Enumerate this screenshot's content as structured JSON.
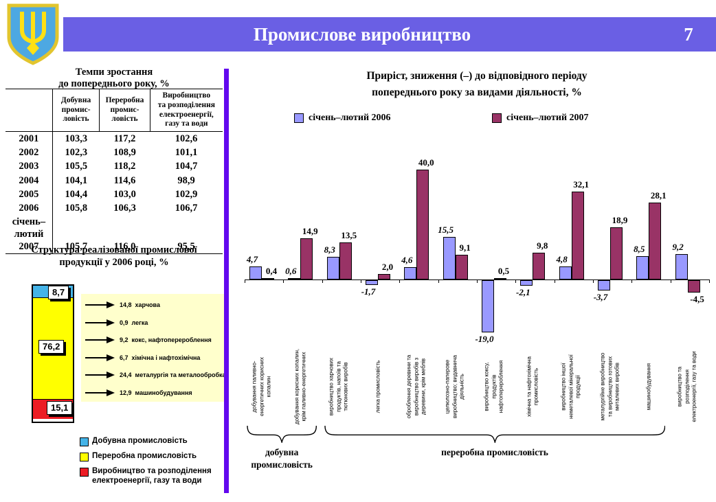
{
  "header": {
    "title": "Промислове виробництво",
    "page_number": "7"
  },
  "coat_of_arms": "ukraine-coat-of-arms-icon",
  "colors": {
    "header_bar": "#6A5FE4",
    "divider": "#6208EE",
    "series_2006": "#9999FF",
    "series_2007": "#993366",
    "mining_blue": "#45B4E8",
    "manufacturing_yellow": "#FFFF00",
    "energy_red": "#EC1C24",
    "breakdown_panel": "#FFFFCC"
  },
  "left_panel": {
    "table_title": "Темпи зростання\nдо попереднього року, %",
    "structure_title": "Структура реалізованої промислової\nпродукції у 2006 році, %",
    "legend": [
      {
        "label": "Добувна промисловість",
        "color": "#45B4E8"
      },
      {
        "label": "Переробна промисловість",
        "color": "#FFFF00"
      },
      {
        "label": "Виробництво та розподілення\nелектроенергії, газу та води",
        "color": "#EC1C24"
      }
    ]
  },
  "main_chart": {
    "title": "Приріст, зниження (–) до відповідного періоду\nпопереднього року за видами діяльності, %",
    "legend": [
      {
        "label": "січень–лютий 2006",
        "color": "#9999FF"
      },
      {
        "label": "січень–лютий 2007",
        "color": "#993366"
      }
    ],
    "group_labels": [
      "добувна\nпромисловість",
      "переробна промисловість"
    ]
  },
  "chart_data": [
    {
      "id": "growth-table",
      "type": "table",
      "title": "Темпи зростання до попереднього року, %",
      "columns": [
        "",
        "Добувна\nпромис-\nловість",
        "Переробна\nпромис-\nловість",
        "Виробництво\nта розподілення\nелектроенергії,\nгазу та води"
      ],
      "rows": [
        [
          "2001",
          "103,3",
          "117,2",
          "102,6"
        ],
        [
          "2002",
          "102,3",
          "108,9",
          "101,1"
        ],
        [
          "2003",
          "105,5",
          "118,2",
          "104,7"
        ],
        [
          "2004",
          "104,1",
          "114,6",
          "98,9"
        ],
        [
          "2005",
          "104,4",
          "103,0",
          "102,9"
        ],
        [
          "2006",
          "105,8",
          "106,3",
          "106,7"
        ],
        [
          "січень–\nлютий\n2007",
          "105,7",
          "116,0",
          "95,5"
        ]
      ]
    },
    {
      "id": "structure-2006",
      "type": "bar",
      "subtype": "stacked-single-column",
      "title": "Структура реалізованої промислової продукції у 2006 році, %",
      "segments": [
        {
          "label": "Добувна промисловість",
          "value": 8.7,
          "display": "8,7",
          "color": "#45B4E8"
        },
        {
          "label": "Переробна промисловість",
          "value": 76.2,
          "display": "76,2",
          "color": "#FFFF00"
        },
        {
          "label": "Виробництво та розподілення електроенергії, газу та води",
          "value": 15.1,
          "display": "15,1",
          "color": "#EC1C24"
        }
      ],
      "manufacturing_breakdown": [
        {
          "value": "14,8",
          "label": "харчова"
        },
        {
          "value": "0,9",
          "label": "легка"
        },
        {
          "value": "9,2",
          "label": "кокс, нафтоперероблення"
        },
        {
          "value": "6,7",
          "label": "хімічна і нафтохімічна"
        },
        {
          "value": "24,4",
          "label": "металургія та металообробка"
        },
        {
          "value": "12,9",
          "label": "машинобудування"
        }
      ]
    },
    {
      "id": "activity-growth",
      "type": "bar",
      "subtype": "grouped",
      "title": "Приріст, зниження (–) до відповідного періоду попереднього року за видами діяльності, %",
      "ylim": [
        -20,
        42
      ],
      "grid": false,
      "legend_position": "top",
      "categories": [
        "добування паливно-\nенергетичних корисних\nкопалин",
        "добування корисних копалин,\nкрім паливно-енергетичних",
        "виробництво харчових\nпродуктів, напоїв та\nтютюнових виробів",
        "легка промисловість",
        "оброблення деревини та\nвиробництво виробів з\nдеревини, крім меблів",
        "целюлозно-паперове\nвиробництво; видавнича\nдіяльність",
        "виробництво коксу,\nпродуктів\nнафтоперероблення",
        "хімічна та нафтохімічна\nпромисловість",
        "виробництво іншої\nнеметалевої мінеральної\nпродукції",
        "металургійне виробництво\nта виробництво готових\nметалевих виробів",
        "машинобудування",
        "виробництво та\nрозподілення\nелектроенергії, газу та води"
      ],
      "series": [
        {
          "name": "січень–лютий 2006",
          "color": "#9999FF",
          "values": [
            4.7,
            0.6,
            8.3,
            -1.7,
            4.6,
            15.5,
            -19.0,
            -2.1,
            4.8,
            -3.7,
            8.5,
            9.2
          ]
        },
        {
          "name": "січень–лютий 2007",
          "color": "#993366",
          "values": [
            0.4,
            14.9,
            13.5,
            2.0,
            40.0,
            9.1,
            0.5,
            9.8,
            32.1,
            18.9,
            28.1,
            -4.5
          ]
        }
      ],
      "category_groups": [
        {
          "label": "добувна промисловість",
          "span": [
            0,
            1
          ]
        },
        {
          "label": "переробна промисловість",
          "span": [
            2,
            10
          ]
        }
      ]
    }
  ]
}
